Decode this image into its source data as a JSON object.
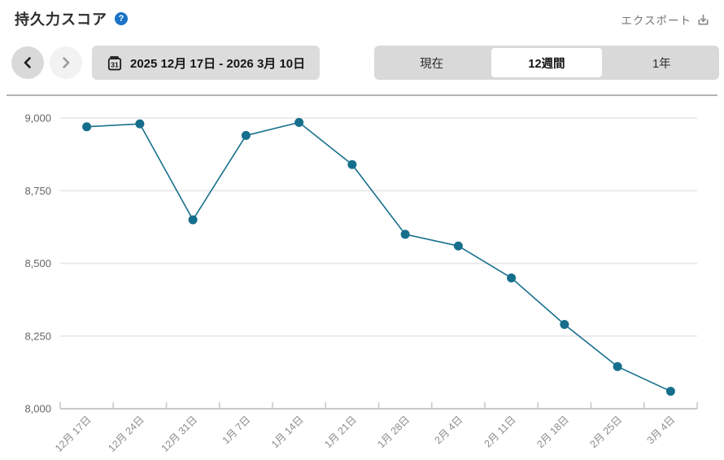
{
  "header": {
    "title": "持久力スコア",
    "help_glyph": "?",
    "export_label": "エクスポート"
  },
  "controls": {
    "prev_label": "previous period",
    "next_label": "next period",
    "date_range": "2025 12月 17日 - 2026 3月 10日",
    "tabs": [
      {
        "label": "現在",
        "selected": false
      },
      {
        "label": "12週間",
        "selected": true
      },
      {
        "label": "1年",
        "selected": false
      }
    ]
  },
  "colors": {
    "line": "#17708c",
    "point": "#156f8c",
    "grid": "#e8e8e8",
    "axis": "#c9c9c9",
    "y_label": "#666666",
    "x_label": "#8c8c8c",
    "help_badge": "#1a73c6"
  },
  "chart_data": {
    "type": "line",
    "title": "持久力スコア",
    "categories": [
      "12月 17日",
      "12月 24日",
      "12月 31日",
      "1月 7日",
      "1月 14日",
      "1月 21日",
      "1月 28日",
      "2月 4日",
      "2月 11日",
      "2月 18日",
      "2月 25日",
      "3月 4日"
    ],
    "values": [
      8970,
      8980,
      8650,
      8940,
      8985,
      8840,
      8600,
      8560,
      8450,
      8290,
      8145,
      8060
    ],
    "xlabel": "",
    "ylabel": "",
    "ylim": [
      8000,
      9000
    ],
    "yticks": [
      9000,
      8750,
      8500,
      8250,
      8000
    ],
    "ytick_labels": [
      "9,000",
      "8,750",
      "8,500",
      "8,250",
      "8,000"
    ],
    "grid": "horizontal",
    "legend": false,
    "x_label_rotation": -45
  }
}
